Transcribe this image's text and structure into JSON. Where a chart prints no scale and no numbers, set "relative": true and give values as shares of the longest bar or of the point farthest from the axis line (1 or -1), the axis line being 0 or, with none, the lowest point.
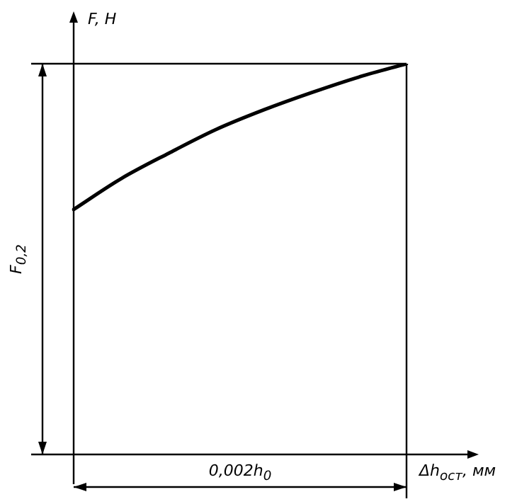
{
  "chart_data": {
    "type": "line",
    "relative": true,
    "categories": [
      null,
      null,
      null,
      null,
      null,
      null,
      null,
      null
    ],
    "values": [
      0.627,
      0.706,
      0.771,
      0.832,
      0.882,
      0.926,
      0.966,
      1.0
    ],
    "color": "#000000",
    "xlabel": "Δh$_{ост}$, мм",
    "ylabel": "F, H",
    "annotations": [
      "F$_{0,2}$",
      "0,002h$_{0}$"
    ],
    "legend": false,
    "marker": "none",
    "line_style": "solid"
  }
}
